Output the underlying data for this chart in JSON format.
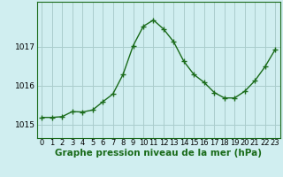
{
  "x": [
    0,
    1,
    2,
    3,
    4,
    5,
    6,
    7,
    8,
    9,
    10,
    11,
    12,
    13,
    14,
    15,
    16,
    17,
    18,
    19,
    20,
    21,
    22,
    23
  ],
  "y": [
    1015.18,
    1015.18,
    1015.2,
    1015.33,
    1015.32,
    1015.37,
    1015.58,
    1015.78,
    1016.28,
    1017.02,
    1017.52,
    1017.68,
    1017.45,
    1017.12,
    1016.62,
    1016.28,
    1016.08,
    1015.82,
    1015.68,
    1015.68,
    1015.85,
    1016.12,
    1016.48,
    1016.92
  ],
  "line_color": "#1a6b1a",
  "marker": "+",
  "marker_size": 4,
  "marker_edge_width": 1.0,
  "line_width": 1.0,
  "bg_color": "#d0eef0",
  "grid_color": "#aacccc",
  "title": "Graphe pression niveau de la mer (hPa)",
  "title_fontsize": 7.5,
  "title_fontweight": "bold",
  "ylabel_ticks": [
    1015,
    1016,
    1017
  ],
  "ylim": [
    1014.65,
    1018.15
  ],
  "xlim": [
    -0.5,
    23.5
  ],
  "tick_fontsize": 6.5,
  "xtick_fontsize": 6.0
}
